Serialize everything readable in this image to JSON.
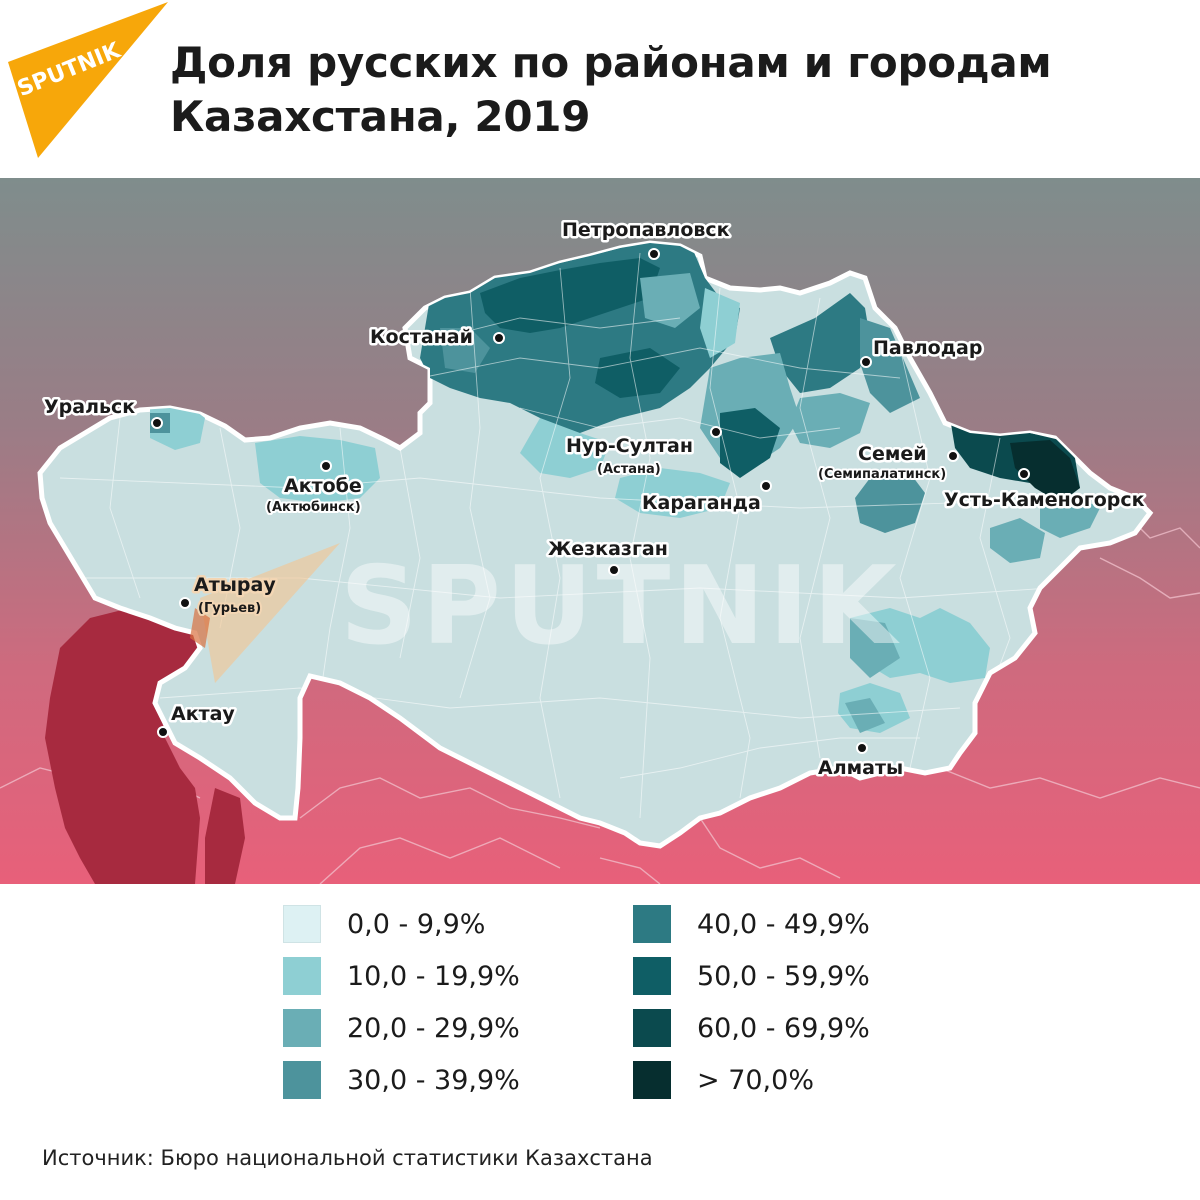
{
  "brand": {
    "logo_text": "SPUTNIK",
    "watermark_text": "SPUTNIK",
    "logo_color": "#f7a70a"
  },
  "title": "Доля русских по районам и городам Казахстана, 2019",
  "cities": [
    {
      "id": "petropavlovsk",
      "name": "Петропавловск"
    },
    {
      "id": "kostanay",
      "name": "Костанай"
    },
    {
      "id": "pavlodar",
      "name": "Павлодар"
    },
    {
      "id": "uralsk",
      "name": "Уральск"
    },
    {
      "id": "aktobe",
      "name": "Актобе",
      "alt_name": "(Актюбинск)"
    },
    {
      "id": "nur-sultan",
      "name": "Нур-Султан",
      "alt_name": "(Астана)"
    },
    {
      "id": "semey",
      "name": "Семей",
      "alt_name": "(Семипалатинск)"
    },
    {
      "id": "karaganda",
      "name": "Караганда"
    },
    {
      "id": "ust-kamenogorsk",
      "name": "Усть-Каменогорск"
    },
    {
      "id": "zhezkazgan",
      "name": "Жезказган"
    },
    {
      "id": "atyrau",
      "name": "Атырау",
      "alt_name": "(Гурьев)"
    },
    {
      "id": "aktau",
      "name": "Актау"
    },
    {
      "id": "almaty",
      "name": "Алматы"
    }
  ],
  "legend": [
    {
      "label": "0,0 - 9,9%",
      "color": "#ddf1f3"
    },
    {
      "label": "10,0 - 19,9%",
      "color": "#8ecfd3"
    },
    {
      "label": "20,0 - 29,9%",
      "color": "#6aaeb5"
    },
    {
      "label": "30,0 - 39,9%",
      "color": "#4d939c"
    },
    {
      "label": "40,0 - 49,9%",
      "color": "#2d7a83"
    },
    {
      "label": "50,0 - 59,9%",
      "color": "#0f5e65"
    },
    {
      "label": "60,0 - 69,9%",
      "color": "#0b4a4e"
    },
    {
      "label": "> 70,0%",
      "color": "#062e2f"
    }
  ],
  "source": "Источник: Бюро национальной статистики Казахстана"
}
